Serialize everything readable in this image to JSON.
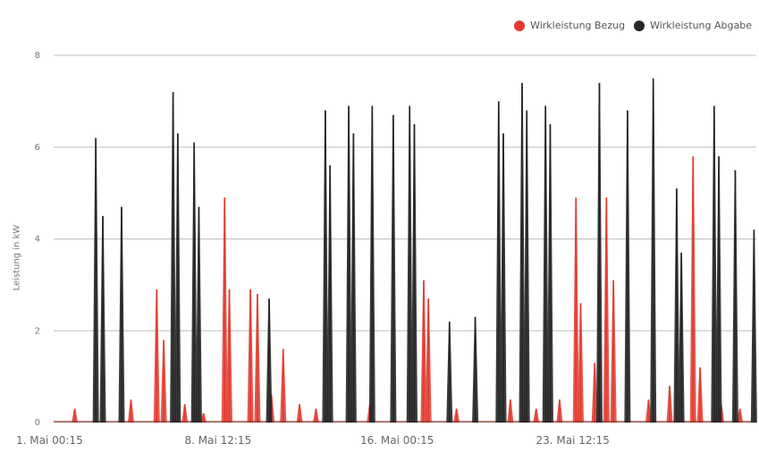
{
  "chart_data": {
    "type": "area",
    "ylabel": "Leistung in kW",
    "ylim": [
      0,
      8
    ],
    "yticks": [
      0,
      2,
      4,
      6,
      8
    ],
    "xlim": [
      0,
      30
    ],
    "xticks": [
      {
        "label": "1. Mai 00:15",
        "x": 0.0
      },
      {
        "label": "8. Mai 12:15",
        "x": 7.5
      },
      {
        "label": "16. Mai 00:15",
        "x": 15.0
      },
      {
        "label": "23. Mai 12:15",
        "x": 22.5
      }
    ],
    "grid": true,
    "legend_position": "top-right",
    "series": [
      {
        "name": "Wirkleistung Bezug",
        "color": "#e23a2e",
        "peaks": [
          [
            0.9,
            0.3
          ],
          [
            3.3,
            0.5
          ],
          [
            4.4,
            2.9
          ],
          [
            4.7,
            1.8
          ],
          [
            5.6,
            0.4
          ],
          [
            6.4,
            0.2
          ],
          [
            7.3,
            4.9
          ],
          [
            7.5,
            2.9
          ],
          [
            8.4,
            2.9
          ],
          [
            8.7,
            2.8
          ],
          [
            9.3,
            0.6
          ],
          [
            9.8,
            1.6
          ],
          [
            10.5,
            0.4
          ],
          [
            11.2,
            0.3
          ],
          [
            13.5,
            0.4
          ],
          [
            15.8,
            3.1
          ],
          [
            16.0,
            2.7
          ],
          [
            17.2,
            0.3
          ],
          [
            19.5,
            0.5
          ],
          [
            20.6,
            0.3
          ],
          [
            21.6,
            0.5
          ],
          [
            22.3,
            4.9
          ],
          [
            22.5,
            2.6
          ],
          [
            23.1,
            1.3
          ],
          [
            23.6,
            4.9
          ],
          [
            23.9,
            3.1
          ],
          [
            25.4,
            0.5
          ],
          [
            26.3,
            0.8
          ],
          [
            27.3,
            5.8
          ],
          [
            27.6,
            1.2
          ],
          [
            28.5,
            0.4
          ],
          [
            29.3,
            0.3
          ]
        ]
      },
      {
        "name": "Wirkleistung Abgabe",
        "color": "#262626",
        "peaks": [
          [
            1.8,
            6.2
          ],
          [
            2.1,
            4.5
          ],
          [
            2.9,
            4.7
          ],
          [
            5.1,
            7.2
          ],
          [
            5.3,
            6.3
          ],
          [
            6.0,
            6.1
          ],
          [
            6.2,
            4.7
          ],
          [
            9.2,
            2.7
          ],
          [
            11.6,
            6.8
          ],
          [
            11.8,
            5.6
          ],
          [
            12.6,
            6.9
          ],
          [
            12.8,
            6.3
          ],
          [
            13.6,
            6.9
          ],
          [
            14.5,
            6.7
          ],
          [
            15.2,
            6.9
          ],
          [
            15.4,
            6.5
          ],
          [
            16.9,
            2.2
          ],
          [
            18.0,
            2.3
          ],
          [
            19.0,
            7.0
          ],
          [
            19.2,
            6.3
          ],
          [
            20.0,
            7.4
          ],
          [
            20.2,
            6.8
          ],
          [
            21.0,
            6.9
          ],
          [
            21.2,
            6.5
          ],
          [
            23.3,
            7.4
          ],
          [
            24.5,
            6.8
          ],
          [
            25.6,
            7.5
          ],
          [
            26.6,
            5.1
          ],
          [
            26.8,
            3.7
          ],
          [
            28.2,
            6.9
          ],
          [
            28.4,
            5.8
          ],
          [
            29.1,
            5.5
          ],
          [
            29.9,
            4.2
          ]
        ]
      }
    ]
  }
}
